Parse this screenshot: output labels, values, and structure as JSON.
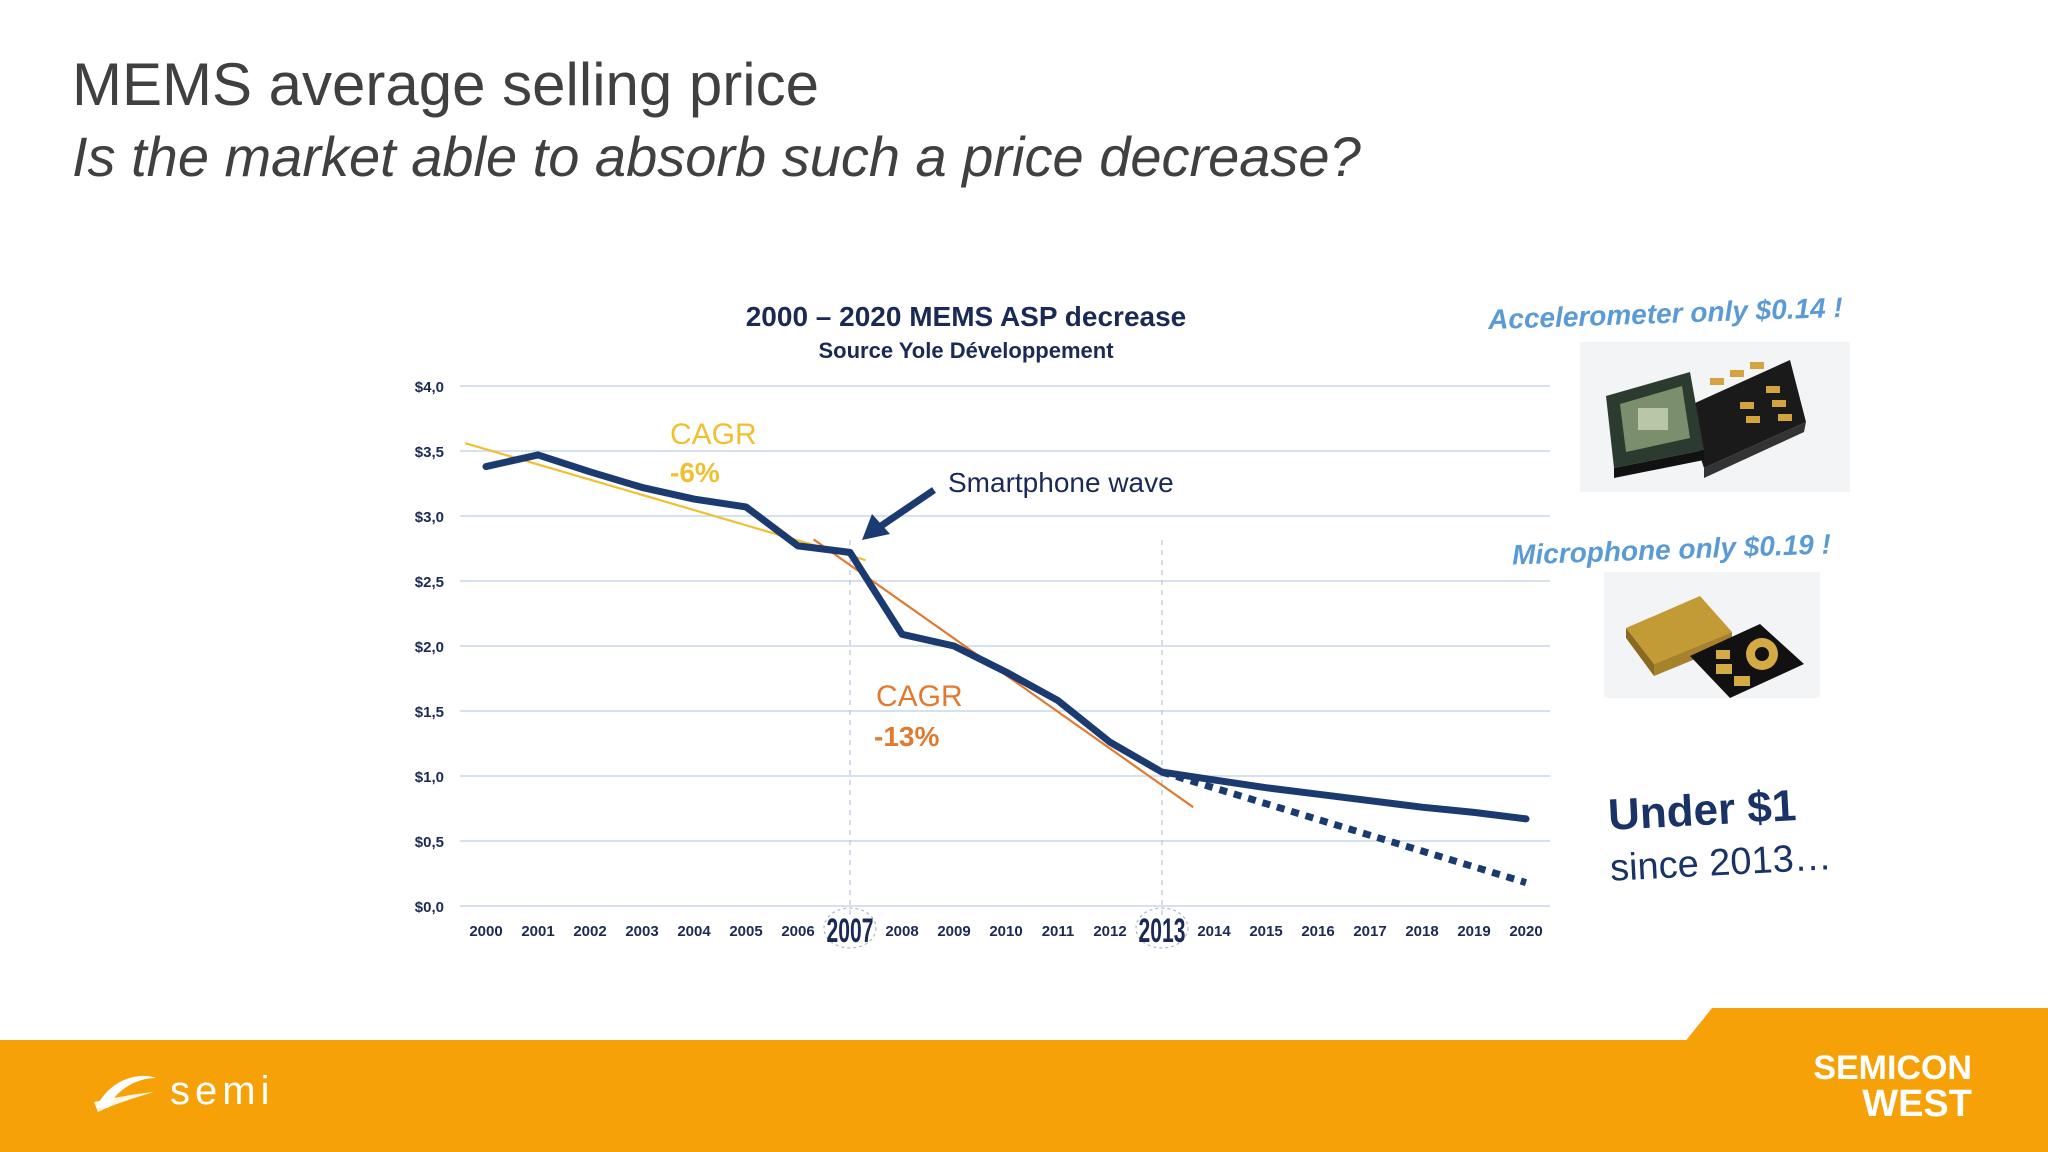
{
  "slide": {
    "title": "MEMS average selling price",
    "subtitle": "Is the market able to absorb such a price decrease?"
  },
  "chart_data": {
    "type": "line",
    "title": "2000 – 2020 MEMS ASP decrease",
    "subtitle": "Source Yole Développement",
    "x": [
      "2000",
      "2001",
      "2002",
      "2003",
      "2004",
      "2005",
      "2006",
      "2007",
      "2008",
      "2009",
      "2010",
      "2011",
      "2012",
      "2013",
      "2014",
      "2015",
      "2016",
      "2017",
      "2018",
      "2019",
      "2020"
    ],
    "series": [
      {
        "values": [
          3.38,
          3.47,
          3.34,
          3.22,
          3.13,
          3.07,
          2.77,
          2.72,
          2.09,
          2.0,
          1.8,
          1.58,
          1.26,
          1.03,
          0.97,
          0.91,
          0.86,
          0.81,
          0.76,
          0.72,
          0.67
        ],
        "color": "#1b3a70",
        "style": "solid"
      },
      {
        "x": [
          "2013",
          "2020"
        ],
        "values": [
          1.03,
          0.18
        ],
        "color": "#1b3a70",
        "style": "dotted"
      }
    ],
    "trendlines": [
      {
        "x": [
          1999.6,
          2007.3
        ],
        "values": [
          3.56,
          2.66
        ],
        "color": "#f0c030"
      },
      {
        "x": [
          2006.3,
          2013.6
        ],
        "values": [
          2.82,
          0.76
        ],
        "color": "#e07a30"
      }
    ],
    "ytick_labels": [
      "$0,0",
      "$0,5",
      "$1,0",
      "$1,5",
      "$2,0",
      "$2,5",
      "$3,0",
      "$3,5",
      "$4,0"
    ],
    "ylim": [
      0,
      4.0
    ],
    "grid": true,
    "highlighted_x": [
      "2007",
      "2013"
    ],
    "annotations": [
      {
        "label": "CAGR",
        "value": "-6%",
        "color": "#f0c030"
      },
      {
        "label": "CAGR",
        "value": "-13%",
        "color": "#e07a30"
      },
      {
        "text": "Smartphone wave",
        "arrow_to": "2007"
      }
    ]
  },
  "callouts": {
    "accelerometer": "Accelerometer only $0.14 !",
    "microphone": "Microphone only $0.19 !",
    "under_line1": "Under $1",
    "under_line2": "since 2013…"
  },
  "footer": {
    "semi_logo": "semi",
    "semicon_line1": "SEMICON",
    "semicon_line2": "WEST",
    "color": "#f7a108"
  }
}
